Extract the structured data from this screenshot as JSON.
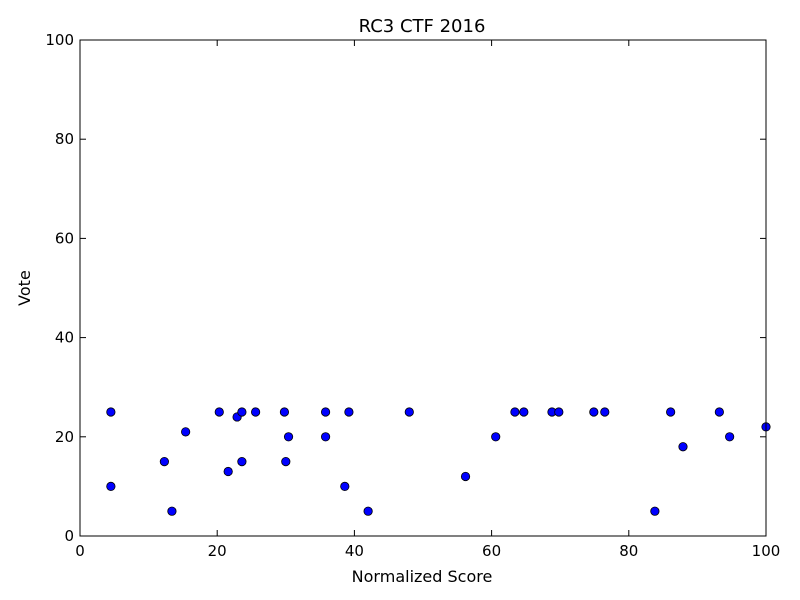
{
  "chart_data": {
    "type": "scatter",
    "title": "RC3 CTF 2016",
    "xlabel": "Normalized Score",
    "ylabel": "Vote",
    "xlim": [
      0,
      100
    ],
    "ylim": [
      0,
      100
    ],
    "xticks": [
      0,
      20,
      40,
      60,
      80,
      100
    ],
    "yticks": [
      0,
      20,
      40,
      60,
      80,
      100
    ],
    "grid": false,
    "marker_color": "#0000ff",
    "marker_edge_color": "#000000",
    "points": [
      {
        "x": 4.5,
        "y": 25
      },
      {
        "x": 4.5,
        "y": 10
      },
      {
        "x": 12.3,
        "y": 15
      },
      {
        "x": 13.4,
        "y": 5
      },
      {
        "x": 15.4,
        "y": 21
      },
      {
        "x": 20.3,
        "y": 25
      },
      {
        "x": 21.6,
        "y": 13
      },
      {
        "x": 22.9,
        "y": 24
      },
      {
        "x": 23.6,
        "y": 25
      },
      {
        "x": 23.6,
        "y": 15
      },
      {
        "x": 25.6,
        "y": 25
      },
      {
        "x": 29.8,
        "y": 25
      },
      {
        "x": 30.0,
        "y": 15
      },
      {
        "x": 30.4,
        "y": 20
      },
      {
        "x": 35.8,
        "y": 25
      },
      {
        "x": 35.8,
        "y": 20
      },
      {
        "x": 38.6,
        "y": 10
      },
      {
        "x": 39.2,
        "y": 25
      },
      {
        "x": 42.0,
        "y": 5
      },
      {
        "x": 48.0,
        "y": 25
      },
      {
        "x": 56.2,
        "y": 12
      },
      {
        "x": 60.6,
        "y": 20
      },
      {
        "x": 63.4,
        "y": 25
      },
      {
        "x": 64.7,
        "y": 25
      },
      {
        "x": 68.8,
        "y": 25
      },
      {
        "x": 69.8,
        "y": 25
      },
      {
        "x": 74.9,
        "y": 25
      },
      {
        "x": 76.5,
        "y": 25
      },
      {
        "x": 83.8,
        "y": 5
      },
      {
        "x": 86.1,
        "y": 25
      },
      {
        "x": 87.9,
        "y": 18
      },
      {
        "x": 93.2,
        "y": 25
      },
      {
        "x": 94.7,
        "y": 20
      },
      {
        "x": 100.0,
        "y": 22
      }
    ]
  }
}
